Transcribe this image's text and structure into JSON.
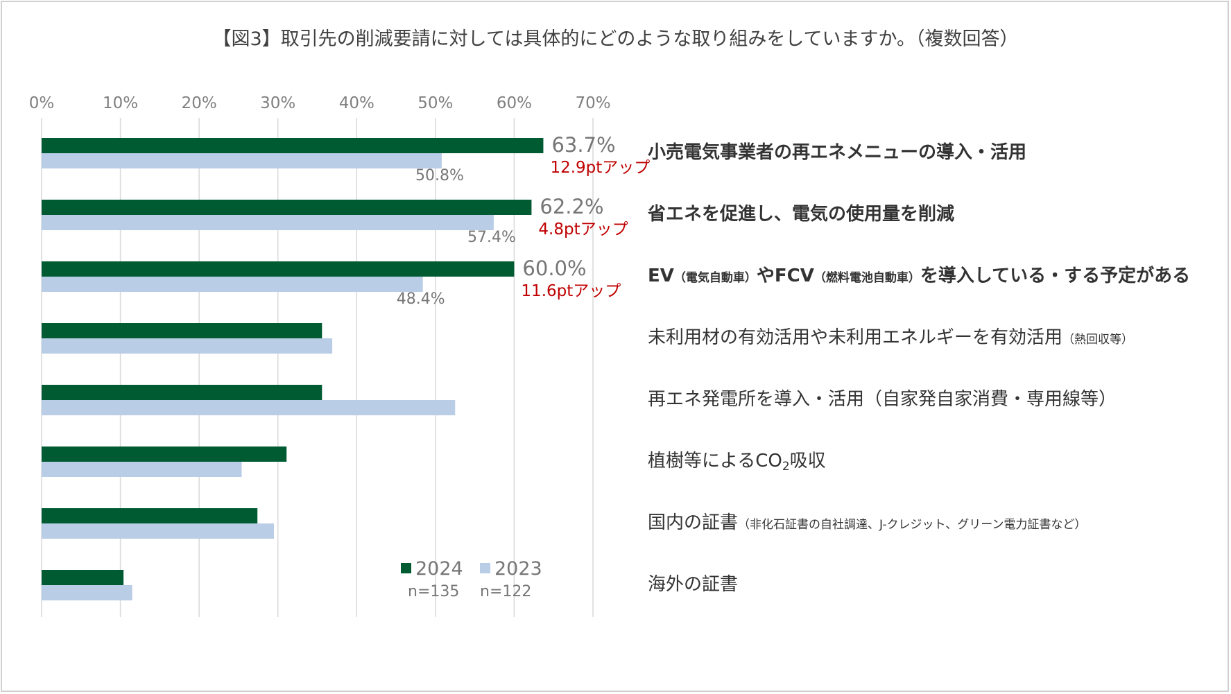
{
  "title": "【図3】取引先の削減要請に対しては具体的にどのような取り組みをしていますか。（複数回答）",
  "colors": {
    "series_2024": "#005b33",
    "series_2023": "#b9cde6",
    "highlight": "#c00000",
    "axis_text": "#7f7f7f",
    "grid": "#d9d9d9"
  },
  "categories": [
    {
      "main": "小売電気事業者の再エネメニューの導入・活用",
      "bold": true
    },
    {
      "main": "省エネを促進し、電気の使用量を削減",
      "bold": true
    },
    {
      "parts": [
        "EV",
        "（電気自動車）",
        "やFCV",
        "（燃料電池自動車）",
        "を導入している・する予定がある"
      ],
      "bold": true
    },
    {
      "main": "未利用材の有効活用や未利用エネルギーを有効活用",
      "note": "（熱回収等）"
    },
    {
      "main": "再エネ発電所を導入・活用（自家発自家消費・専用線等）"
    },
    {
      "pre": "植樹等によるCO",
      "sub": "2",
      "post": "吸収"
    },
    {
      "main": "国内の証書",
      "note": "（非化石証書の自社調達、J-クレジット、グリーン電力証書など）"
    },
    {
      "main": "海外の証書"
    }
  ],
  "legend": {
    "y2024": {
      "label": "2024",
      "n": "n=135"
    },
    "y2023": {
      "label": "2023",
      "n": "n=122"
    }
  },
  "chart_data": {
    "type": "bar",
    "orientation": "horizontal",
    "title": "【図3】取引先の削減要請に対しては具体的にどのような取り組みをしていますか。（複数回答）",
    "xlim": [
      0,
      70
    ],
    "xticks": [
      "0%",
      "10%",
      "20%",
      "30%",
      "40%",
      "50%",
      "60%",
      "70%"
    ],
    "x_axis_position": "top",
    "grid": "vertical",
    "legend_position": "bottom-center",
    "categories": [
      "小売電気事業者の再エネメニューの導入・活用",
      "省エネを促進し、電気の使用量を削減",
      "EV（電気自動車）やFCV（燃料電池自動車）を導入している・する予定がある",
      "未利用材の有効活用や未利用エネルギーを有効活用（熱回収等）",
      "再エネ発電所を導入・活用（自家発自家消費・専用線等）",
      "植樹等によるCO2吸収",
      "国内の証書（非化石証書の自社調達、J-クレジット、グリーン電力証書など）",
      "海外の証書"
    ],
    "series": [
      {
        "name": "2024",
        "values": [
          63.7,
          62.2,
          60.0,
          35.6,
          35.6,
          31.1,
          27.4,
          10.4
        ]
      },
      {
        "name": "2023",
        "values": [
          50.8,
          57.4,
          48.4,
          36.9,
          52.5,
          25.4,
          29.5,
          11.5
        ]
      }
    ],
    "data_labels": {
      "2024": [
        "63.7%",
        "62.2%",
        "60.0%"
      ],
      "2023": [
        "50.8%",
        "57.4%",
        "48.4%"
      ]
    },
    "annotations": [
      "12.9ptアップ",
      "4.8ptアップ",
      "11.6ptアップ"
    ]
  }
}
